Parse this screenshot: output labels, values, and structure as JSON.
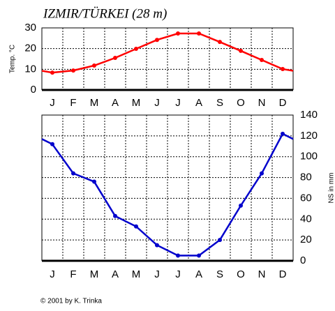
{
  "chart_data": [
    {
      "type": "line",
      "title": "IZMIR/TÜRKEI (28 m)",
      "y_label": "Temp. °C",
      "axis_side": "left",
      "categories": [
        "J",
        "F",
        "M",
        "A",
        "M",
        "J",
        "J",
        "A",
        "S",
        "O",
        "N",
        "D"
      ],
      "values": [
        8.4,
        9.4,
        11.8,
        15.5,
        19.9,
        24.2,
        27.3,
        27.3,
        23.2,
        18.9,
        14.5,
        10.1
      ],
      "color": "#ff0000",
      "ylim": [
        0,
        30
      ],
      "yticks": [
        0,
        10,
        20,
        30
      ],
      "grid": true
    },
    {
      "type": "line",
      "y_label": "NS in mm",
      "axis_side": "right",
      "categories": [
        "J",
        "F",
        "M",
        "A",
        "M",
        "J",
        "J",
        "A",
        "S",
        "O",
        "N",
        "D"
      ],
      "values": [
        112,
        84,
        76,
        43,
        33,
        15,
        5,
        5,
        20,
        53,
        84,
        122
      ],
      "color": "#0000cc",
      "ylim": [
        0,
        140
      ],
      "yticks": [
        0,
        20,
        40,
        60,
        80,
        100,
        120,
        140
      ],
      "grid": true
    }
  ],
  "footer": "© 2001 by K. Trinka"
}
